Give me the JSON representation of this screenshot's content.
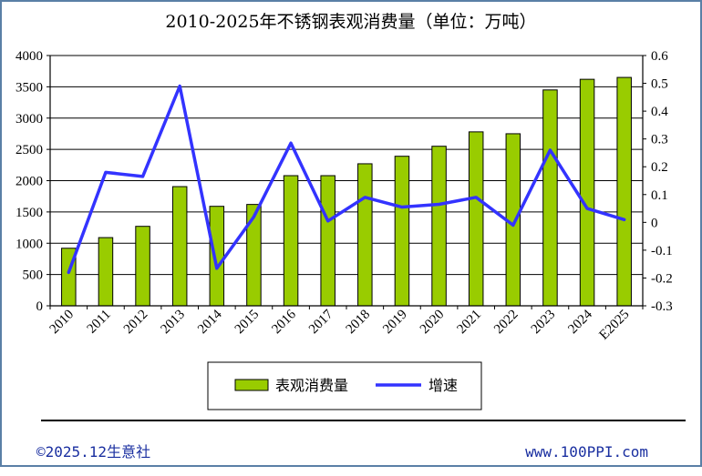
{
  "chart_data": {
    "type": "bar",
    "title": "2010-2025年不锈钢表观消费量（单位：万吨）",
    "categories": [
      "2010",
      "2011",
      "2012",
      "2013",
      "2014",
      "2015",
      "2016",
      "2017",
      "2018",
      "2019",
      "2020",
      "2021",
      "2022",
      "2023",
      "2024",
      "E2025"
    ],
    "series": [
      {
        "name": "表观消费量",
        "type": "bar",
        "axis": "left",
        "color": "#99cc00",
        "values": [
          920,
          1090,
          1270,
          1905,
          1590,
          1620,
          2080,
          2080,
          2270,
          2390,
          2550,
          2780,
          2750,
          3450,
          3620,
          3650
        ]
      },
      {
        "name": "增速",
        "type": "line",
        "axis": "right",
        "color": "#3333ff",
        "values": [
          -0.18,
          0.18,
          0.165,
          0.49,
          -0.165,
          0.02,
          0.285,
          0.005,
          0.09,
          0.055,
          0.065,
          0.09,
          -0.01,
          0.26,
          0.05,
          0.01
        ]
      }
    ],
    "y_left": {
      "min": 0,
      "max": 4000,
      "step": 500,
      "tick_labels": [
        "0",
        "500",
        "1000",
        "1500",
        "2000",
        "2500",
        "3000",
        "3500",
        "4000"
      ]
    },
    "y_right": {
      "min": -0.3,
      "max": 0.6,
      "step": 0.1,
      "tick_labels": [
        "-0.3",
        "-0.2",
        "-0.1",
        "0",
        "0.1",
        "0.2",
        "0.3",
        "0.4",
        "0.5",
        "0.6"
      ]
    },
    "grid": true,
    "legend_position": "bottom"
  },
  "footer": {
    "left": "©2025.12生意社",
    "right": "www.100PPI.com"
  }
}
